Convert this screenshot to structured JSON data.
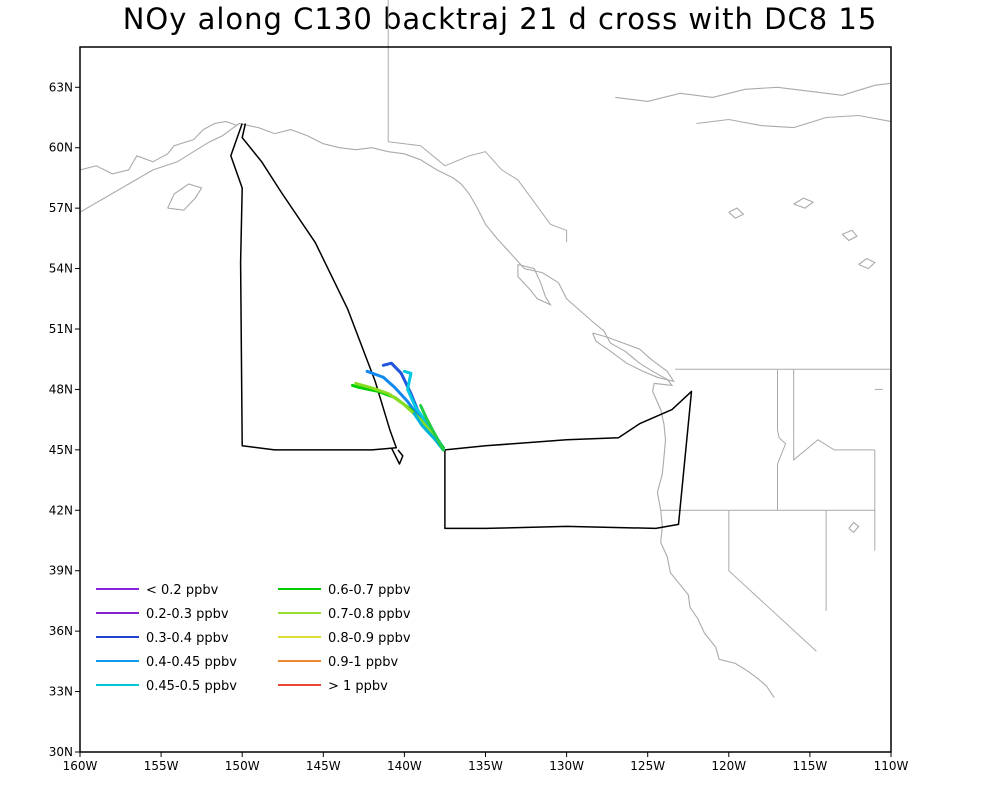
{
  "title": "NOy along C130 backtraj 21 d cross with DC8 15",
  "map": {
    "lon_range": [
      -160,
      -110
    ],
    "lat_range": [
      30,
      65
    ],
    "lon_ticks": [
      {
        "value": -160,
        "label": "160W"
      },
      {
        "value": -155,
        "label": "155W"
      },
      {
        "value": -150,
        "label": "150W"
      },
      {
        "value": -145,
        "label": "145W"
      },
      {
        "value": -140,
        "label": "140W"
      },
      {
        "value": -135,
        "label": "135W"
      },
      {
        "value": -130,
        "label": "130W"
      },
      {
        "value": -125,
        "label": "125W"
      },
      {
        "value": -120,
        "label": "120W"
      },
      {
        "value": -115,
        "label": "115W"
      },
      {
        "value": -110,
        "label": "110W"
      }
    ],
    "lat_ticks": [
      {
        "value": 30,
        "label": "30N"
      },
      {
        "value": 33,
        "label": "33N"
      },
      {
        "value": 36,
        "label": "36N"
      },
      {
        "value": 39,
        "label": "39N"
      },
      {
        "value": 42,
        "label": "42N"
      },
      {
        "value": 45,
        "label": "45N"
      },
      {
        "value": 48,
        "label": "48N"
      },
      {
        "value": 51,
        "label": "51N"
      },
      {
        "value": 54,
        "label": "54N"
      },
      {
        "value": 57,
        "label": "57N"
      },
      {
        "value": 60,
        "label": "60N"
      },
      {
        "value": 63,
        "label": "63N"
      }
    ],
    "coastline_color": "#aaaaaa",
    "flight_track_color": "#000000",
    "flight_track": [
      [
        -150,
        61.2
      ],
      [
        -150.7,
        59.6
      ],
      [
        -150.0,
        58.0
      ],
      [
        -150.1,
        54.3
      ],
      [
        -150,
        45.2
      ],
      [
        -148,
        45.0
      ],
      [
        -145,
        45.0
      ],
      [
        -142,
        45.0
      ],
      [
        -140.5,
        45.1
      ],
      [
        -140.9,
        46.0
      ],
      [
        -141.8,
        48.4
      ],
      [
        -143.5,
        52.0
      ],
      [
        -145.5,
        55.3
      ],
      [
        -147.6,
        57.8
      ],
      [
        -148.8,
        59.3
      ],
      [
        -150,
        60.5
      ],
      [
        -149.8,
        61.2
      ]
    ],
    "flight_track_2": [
      [
        -140.8,
        45.1
      ],
      [
        -140.3,
        44.3
      ],
      [
        -140.1,
        44.7
      ],
      [
        -140.4,
        45.0
      ]
    ],
    "flight_track_3": [
      [
        -137.5,
        45.0
      ],
      [
        -135,
        45.2
      ],
      [
        -130,
        45.5
      ],
      [
        -126.8,
        45.6
      ],
      [
        -125.5,
        46.3
      ],
      [
        -123.5,
        47.0
      ],
      [
        -122.3,
        47.9
      ],
      [
        -123.1,
        41.3
      ],
      [
        -124.5,
        41.1
      ],
      [
        -130,
        41.2
      ],
      [
        -135,
        41.1
      ],
      [
        -137.5,
        41.1
      ],
      [
        -137.5,
        45.0
      ]
    ],
    "trajectories": [
      {
        "color": "#2255dd",
        "points": [
          [
            -137.6,
            45.1
          ],
          [
            -138.5,
            46.0
          ],
          [
            -139.2,
            47.0
          ],
          [
            -139.6,
            47.8
          ],
          [
            -140.2,
            48.8
          ],
          [
            -140.8,
            49.3
          ],
          [
            -141.3,
            49.2
          ]
        ]
      },
      {
        "color": "#00c8e0",
        "points": [
          [
            -137.6,
            45.1
          ],
          [
            -138.4,
            46.1
          ],
          [
            -139.3,
            47.1
          ],
          [
            -139.8,
            48.0
          ],
          [
            -139.6,
            48.8
          ],
          [
            -140.0,
            48.9
          ]
        ]
      },
      {
        "color": "#1188ee",
        "points": [
          [
            -137.6,
            45.1
          ],
          [
            -138.7,
            46.2
          ],
          [
            -139.8,
            47.4
          ],
          [
            -140.6,
            48.1
          ],
          [
            -141.3,
            48.6
          ],
          [
            -142.3,
            48.9
          ]
        ]
      },
      {
        "color": "#00d000",
        "points": [
          [
            -137.6,
            45.1
          ],
          [
            -138.8,
            46.3
          ],
          [
            -139.6,
            47.0
          ],
          [
            -140.6,
            47.6
          ],
          [
            -141.6,
            47.9
          ],
          [
            -142.8,
            48.1
          ],
          [
            -143.2,
            48.2
          ]
        ]
      },
      {
        "color": "#88dd22",
        "points": [
          [
            -137.8,
            45.3
          ],
          [
            -139.0,
            46.5
          ],
          [
            -140.1,
            47.3
          ],
          [
            -141.0,
            47.8
          ],
          [
            -142.1,
            48.1
          ],
          [
            -143.0,
            48.3
          ]
        ]
      },
      {
        "color": "#00b4d8",
        "points": [
          [
            -137.6,
            45.0
          ],
          [
            -138.2,
            45.6
          ],
          [
            -138.9,
            46.2
          ],
          [
            -139.4,
            46.8
          ]
        ]
      },
      {
        "color": "#22cc44",
        "points": [
          [
            -137.6,
            45.0
          ],
          [
            -138.0,
            45.6
          ],
          [
            -138.6,
            46.5
          ],
          [
            -139.0,
            47.2
          ]
        ]
      }
    ]
  },
  "legend": {
    "col1": [
      {
        "label": "< 0.2 ppbv",
        "color": "#8822dd"
      },
      {
        "label": "0.2-0.3 ppbv",
        "color": "#8822cc"
      },
      {
        "label": "0.3-0.4 ppbv",
        "color": "#2244cc"
      },
      {
        "label": "0.4-0.45 ppbv",
        "color": "#1199ee"
      },
      {
        "label": "0.45-0.5 ppbv",
        "color": "#00c8d8"
      }
    ],
    "col2": [
      {
        "label": "0.6-0.7 ppbv",
        "color": "#00cc00"
      },
      {
        "label": "0.7-0.8 ppbv",
        "color": "#99dd33"
      },
      {
        "label": "0.8-0.9 ppbv",
        "color": "#dddd33"
      },
      {
        "label": "0.9-1 ppbv",
        "color": "#ee8833"
      },
      {
        "label": "> 1 ppbv",
        "color": "#ee4433"
      }
    ]
  }
}
